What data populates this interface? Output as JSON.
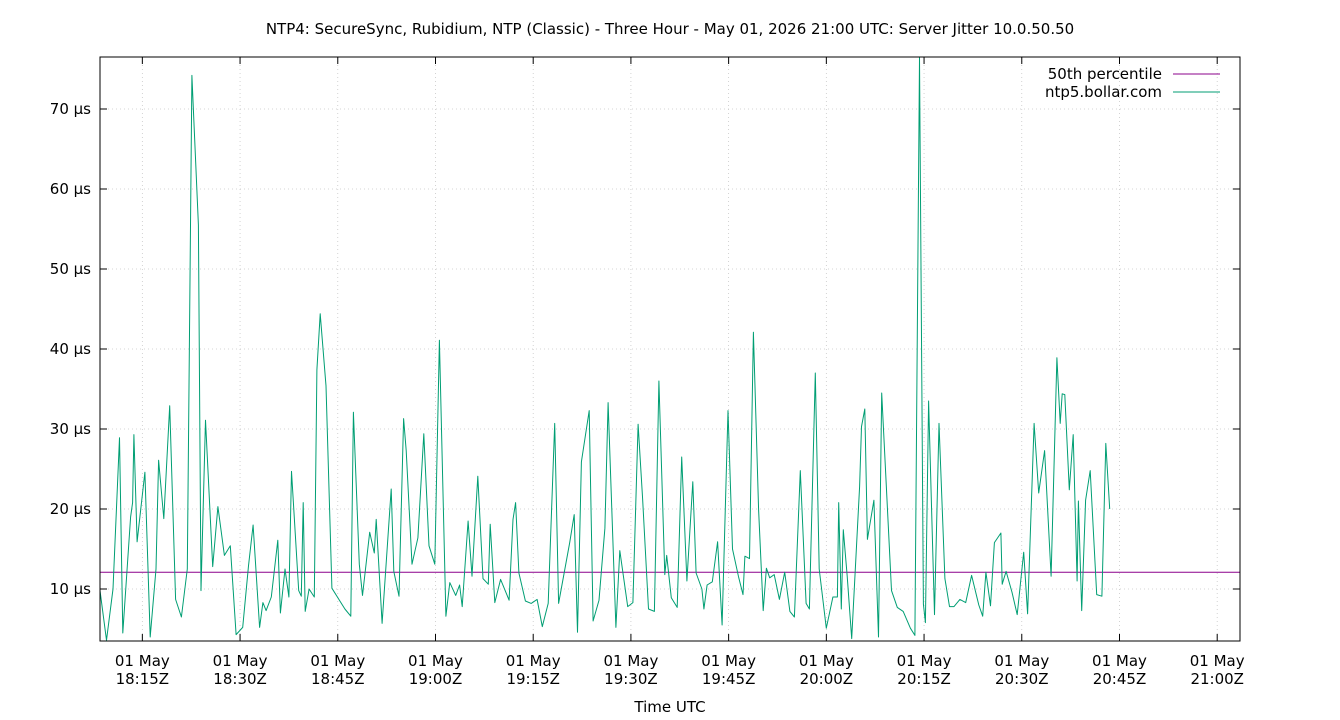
{
  "chart_data": {
    "type": "line",
    "title": "NTP4: SecureSync, Rubidium, NTP (Classic) - Three Hour - May 01, 2026 21:00 UTC: Server Jitter 10.0.50.50",
    "xlabel": "Time UTC",
    "ylabel": "",
    "x_unit": "minutes since 18:00Z",
    "xlim": [
      8.5,
      183.5
    ],
    "ylim": [
      3.5,
      76.5
    ],
    "grid": true,
    "legend_position": "top-right",
    "y_ticks": [
      {
        "value": 10,
        "label": "10 µs"
      },
      {
        "value": 20,
        "label": "20 µs"
      },
      {
        "value": 30,
        "label": "30 µs"
      },
      {
        "value": 40,
        "label": "40 µs"
      },
      {
        "value": 50,
        "label": "50 µs"
      },
      {
        "value": 60,
        "label": "60 µs"
      },
      {
        "value": 70,
        "label": "70 µs"
      }
    ],
    "x_ticks": [
      {
        "value": 15,
        "line1": "01 May",
        "line2": "18:15Z"
      },
      {
        "value": 30,
        "line1": "01 May",
        "line2": "18:30Z"
      },
      {
        "value": 45,
        "line1": "01 May",
        "line2": "18:45Z"
      },
      {
        "value": 60,
        "line1": "01 May",
        "line2": "19:00Z"
      },
      {
        "value": 75,
        "line1": "01 May",
        "line2": "19:15Z"
      },
      {
        "value": 90,
        "line1": "01 May",
        "line2": "19:30Z"
      },
      {
        "value": 105,
        "line1": "01 May",
        "line2": "19:45Z"
      },
      {
        "value": 120,
        "line1": "01 May",
        "line2": "20:00Z"
      },
      {
        "value": 135,
        "line1": "01 May",
        "line2": "20:15Z"
      },
      {
        "value": 150,
        "line1": "01 May",
        "line2": "20:30Z"
      },
      {
        "value": 165,
        "line1": "01 May",
        "line2": "20:45Z"
      },
      {
        "value": 180,
        "line1": "01 May",
        "line2": "21:00Z"
      }
    ],
    "series": [
      {
        "name": "50th percentile",
        "color": "#8b008b",
        "kind": "hline",
        "value": 12.1
      },
      {
        "name": "ntp5.bollar.com",
        "color": "#009e73",
        "kind": "line",
        "points": [
          [
            8.5,
            9.8
          ],
          [
            9.5,
            3.6
          ],
          [
            10.5,
            10.0
          ],
          [
            11.5,
            28.9
          ],
          [
            12.0,
            4.5
          ],
          [
            13.2,
            19.0
          ],
          [
            13.5,
            20.8
          ],
          [
            13.7,
            29.3
          ],
          [
            14.2,
            15.9
          ],
          [
            15.4,
            24.6
          ],
          [
            16.2,
            4.0
          ],
          [
            17.1,
            12.5
          ],
          [
            17.5,
            26.1
          ],
          [
            18.3,
            18.8
          ],
          [
            19.2,
            32.9
          ],
          [
            20.1,
            8.7
          ],
          [
            21.0,
            6.5
          ],
          [
            21.9,
            12.5
          ],
          [
            22.6,
            74.2
          ],
          [
            23.6,
            55.5
          ],
          [
            24.0,
            9.8
          ],
          [
            24.7,
            31.1
          ],
          [
            25.8,
            12.8
          ],
          [
            26.6,
            20.3
          ],
          [
            27.6,
            14.2
          ],
          [
            28.5,
            15.4
          ],
          [
            29.4,
            4.3
          ],
          [
            30.4,
            5.2
          ],
          [
            31.3,
            12.9
          ],
          [
            32.0,
            18.0
          ],
          [
            33.0,
            5.2
          ],
          [
            33.5,
            8.3
          ],
          [
            34.0,
            7.3
          ],
          [
            34.8,
            9.0
          ],
          [
            35.8,
            16.1
          ],
          [
            36.2,
            7.0
          ],
          [
            36.9,
            12.5
          ],
          [
            37.5,
            9.0
          ],
          [
            37.9,
            24.7
          ],
          [
            39.0,
            9.8
          ],
          [
            39.4,
            9.1
          ],
          [
            39.7,
            20.8
          ],
          [
            40.0,
            7.2
          ],
          [
            40.6,
            10.0
          ],
          [
            41.4,
            9.0
          ],
          [
            41.8,
            37.4
          ],
          [
            42.3,
            44.4
          ],
          [
            43.2,
            35.4
          ],
          [
            44.1,
            10.1
          ],
          [
            45.1,
            8.8
          ],
          [
            46.1,
            7.5
          ],
          [
            47.0,
            6.6
          ],
          [
            47.4,
            32.1
          ],
          [
            48.3,
            13.1
          ],
          [
            48.8,
            9.2
          ],
          [
            49.9,
            17.1
          ],
          [
            50.6,
            14.5
          ],
          [
            50.9,
            18.7
          ],
          [
            51.8,
            5.7
          ],
          [
            53.2,
            22.5
          ],
          [
            53.6,
            12.2
          ],
          [
            54.4,
            9.1
          ],
          [
            55.1,
            31.3
          ],
          [
            55.5,
            27.3
          ],
          [
            56.4,
            13.1
          ],
          [
            57.3,
            16.4
          ],
          [
            58.2,
            29.4
          ],
          [
            59.0,
            15.4
          ],
          [
            59.9,
            13.1
          ],
          [
            60.6,
            41.1
          ],
          [
            61.6,
            6.6
          ],
          [
            62.2,
            10.8
          ],
          [
            63.1,
            9.2
          ],
          [
            63.7,
            10.5
          ],
          [
            64.1,
            7.8
          ],
          [
            65.0,
            18.5
          ],
          [
            65.6,
            11.6
          ],
          [
            66.5,
            24.1
          ],
          [
            67.3,
            11.3
          ],
          [
            68.1,
            10.6
          ],
          [
            68.4,
            18.1
          ],
          [
            69.1,
            8.3
          ],
          [
            70.0,
            11.2
          ],
          [
            71.3,
            8.6
          ],
          [
            71.9,
            18.7
          ],
          [
            72.3,
            20.8
          ],
          [
            72.8,
            12.0
          ],
          [
            73.8,
            8.5
          ],
          [
            74.7,
            8.2
          ],
          [
            75.6,
            8.7
          ],
          [
            76.4,
            5.3
          ],
          [
            77.3,
            8.2
          ],
          [
            78.3,
            30.7
          ],
          [
            78.9,
            8.2
          ],
          [
            80.6,
            15.8
          ],
          [
            81.3,
            19.3
          ],
          [
            81.8,
            4.6
          ],
          [
            82.4,
            25.9
          ],
          [
            83.6,
            32.3
          ],
          [
            84.2,
            6.0
          ],
          [
            85.1,
            8.6
          ],
          [
            86.0,
            17.6
          ],
          [
            86.5,
            33.3
          ],
          [
            87.7,
            5.2
          ],
          [
            88.3,
            14.8
          ],
          [
            89.5,
            7.8
          ],
          [
            90.3,
            8.3
          ],
          [
            91.1,
            30.6
          ],
          [
            91.8,
            21.3
          ],
          [
            92.7,
            7.5
          ],
          [
            93.6,
            7.2
          ],
          [
            94.3,
            36.0
          ],
          [
            95.2,
            11.8
          ],
          [
            95.5,
            14.2
          ],
          [
            96.2,
            8.9
          ],
          [
            97.1,
            7.7
          ],
          [
            97.8,
            26.5
          ],
          [
            98.6,
            11.0
          ],
          [
            99.5,
            23.4
          ],
          [
            100.0,
            12.0
          ],
          [
            100.9,
            10.0
          ],
          [
            101.2,
            7.5
          ],
          [
            101.7,
            10.5
          ],
          [
            102.5,
            10.9
          ],
          [
            103.3,
            15.9
          ],
          [
            104.0,
            5.5
          ],
          [
            104.9,
            32.3
          ],
          [
            105.6,
            15.0
          ],
          [
            106.5,
            11.6
          ],
          [
            107.2,
            9.3
          ],
          [
            107.5,
            14.1
          ],
          [
            108.2,
            13.8
          ],
          [
            108.8,
            42.1
          ],
          [
            109.6,
            19.9
          ],
          [
            110.3,
            7.3
          ],
          [
            110.8,
            12.6
          ],
          [
            111.3,
            11.4
          ],
          [
            112.0,
            11.8
          ],
          [
            112.8,
            8.7
          ],
          [
            113.6,
            12.1
          ],
          [
            114.4,
            7.2
          ],
          [
            115.1,
            6.5
          ],
          [
            116.0,
            24.8
          ],
          [
            116.9,
            8.2
          ],
          [
            117.4,
            7.5
          ],
          [
            118.3,
            37.0
          ],
          [
            118.9,
            12.5
          ],
          [
            120.0,
            5.1
          ],
          [
            121.0,
            9.0
          ],
          [
            121.7,
            9.0
          ],
          [
            121.9,
            20.8
          ],
          [
            122.3,
            7.5
          ],
          [
            122.6,
            17.4
          ],
          [
            123.2,
            11.6
          ],
          [
            123.9,
            3.8
          ],
          [
            125.1,
            22.8
          ],
          [
            125.4,
            30.3
          ],
          [
            125.9,
            32.5
          ],
          [
            126.3,
            16.2
          ],
          [
            127.3,
            21.1
          ],
          [
            128.0,
            4.0
          ],
          [
            128.5,
            34.5
          ],
          [
            130.0,
            9.8
          ],
          [
            130.9,
            7.7
          ],
          [
            131.8,
            7.2
          ],
          [
            132.9,
            5.1
          ],
          [
            133.6,
            4.2
          ],
          [
            134.3,
            76.4
          ],
          [
            134.9,
            8.1
          ],
          [
            135.2,
            5.8
          ],
          [
            135.7,
            33.5
          ],
          [
            136.6,
            6.8
          ],
          [
            137.3,
            30.7
          ],
          [
            138.2,
            11.3
          ],
          [
            138.9,
            7.8
          ],
          [
            139.6,
            7.8
          ],
          [
            140.5,
            8.7
          ],
          [
            141.4,
            8.3
          ],
          [
            142.3,
            11.7
          ],
          [
            143.4,
            8.0
          ],
          [
            144.0,
            6.6
          ],
          [
            144.5,
            12.1
          ],
          [
            145.2,
            7.9
          ],
          [
            145.8,
            15.8
          ],
          [
            146.8,
            17.0
          ],
          [
            147.0,
            10.6
          ],
          [
            147.6,
            12.2
          ],
          [
            148.5,
            9.6
          ],
          [
            149.3,
            6.8
          ],
          [
            150.3,
            14.6
          ],
          [
            150.9,
            6.9
          ],
          [
            151.9,
            30.7
          ],
          [
            152.6,
            22.0
          ],
          [
            153.5,
            27.3
          ],
          [
            154.5,
            11.6
          ],
          [
            155.4,
            38.9
          ],
          [
            155.9,
            30.7
          ],
          [
            156.2,
            34.4
          ],
          [
            156.6,
            34.3
          ],
          [
            157.3,
            22.4
          ],
          [
            157.9,
            29.3
          ],
          [
            158.5,
            11.0
          ],
          [
            158.7,
            21.0
          ],
          [
            159.2,
            7.3
          ],
          [
            159.8,
            21.1
          ],
          [
            160.5,
            24.8
          ],
          [
            161.5,
            9.3
          ],
          [
            162.3,
            9.1
          ],
          [
            162.9,
            28.2
          ],
          [
            163.5,
            20.0
          ]
        ]
      }
    ]
  }
}
